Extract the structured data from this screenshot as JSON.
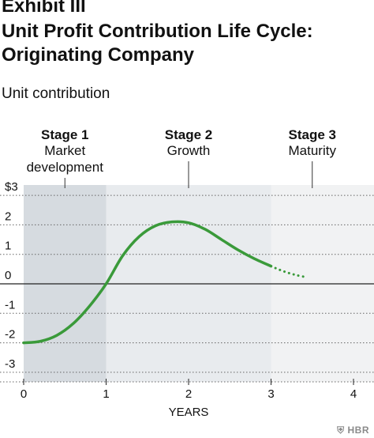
{
  "header": {
    "title_line1": "Exhibit III",
    "title_line2": "Unit Profit Contribution Life Cycle:",
    "title_line3": "Originating Company"
  },
  "chart_data": {
    "type": "line",
    "title": "Unit Profit Contribution Life Cycle: Originating Company",
    "ylabel": "Unit contribution",
    "xlabel": "YEARS",
    "xlim": [
      0,
      4
    ],
    "ylim": [
      -3,
      3
    ],
    "x_ticks": [
      "0",
      "1",
      "2",
      "3",
      "4"
    ],
    "y_ticks": [
      "$3",
      "2",
      "1",
      "0",
      "-1",
      "-2",
      "-3"
    ],
    "stages": [
      {
        "name": "Stage 1",
        "desc": [
          "Market",
          "development"
        ],
        "range": [
          0,
          1
        ],
        "color": "#d6dbe0"
      },
      {
        "name": "Stage 2",
        "desc": [
          "Growth"
        ],
        "range": [
          1,
          3
        ],
        "color": "#e8ebee"
      },
      {
        "name": "Stage 3",
        "desc": [
          "Maturity"
        ],
        "range": [
          3,
          4
        ],
        "color": "#f1f2f3"
      }
    ],
    "series": [
      {
        "line_color": "#3a9a3a",
        "x": [
          0,
          0.2,
          0.4,
          0.6,
          0.8,
          1.0,
          1.2,
          1.4,
          1.6,
          1.8,
          2.0,
          2.2,
          2.4,
          2.6,
          2.8,
          3.0
        ],
        "y": [
          -2.0,
          -1.95,
          -1.75,
          -1.35,
          -0.75,
          0.0,
          0.95,
          1.6,
          1.97,
          2.1,
          2.07,
          1.85,
          1.5,
          1.15,
          0.85,
          0.6
        ]
      },
      {
        "line_color": "#3a9a3a",
        "dashed": true,
        "x": [
          3.0,
          3.1,
          3.2,
          3.3,
          3.4
        ],
        "y": [
          0.6,
          0.48,
          0.38,
          0.3,
          0.24
        ]
      }
    ],
    "grid": false,
    "legend": "none"
  },
  "branding": {
    "logo_text": "HBR"
  }
}
